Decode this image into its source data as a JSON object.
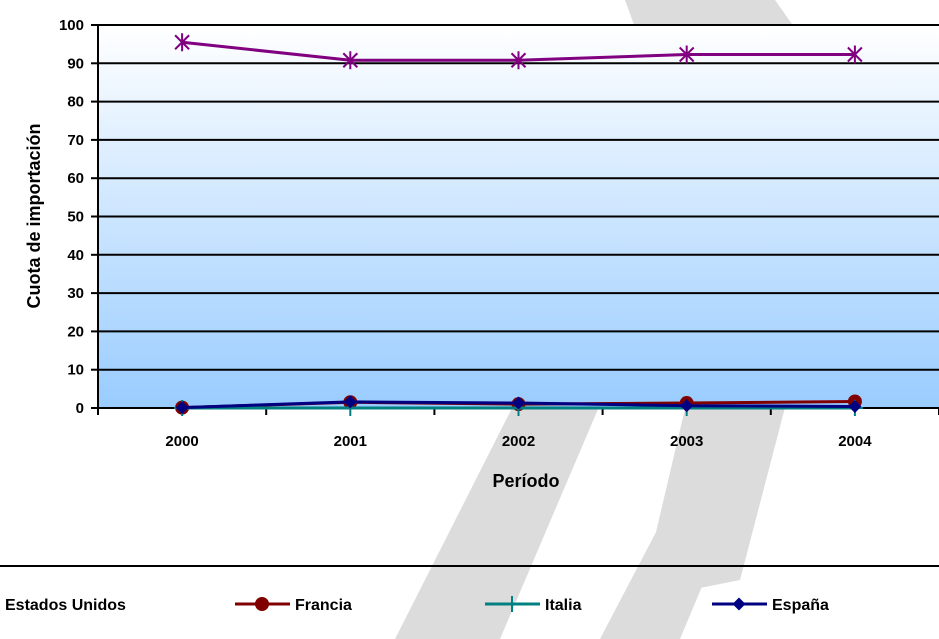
{
  "chart_data": {
    "type": "line",
    "title": "",
    "xlabel": "Período",
    "ylabel": "Cuota de importación",
    "categories": [
      "2000",
      "2001",
      "2002",
      "2003",
      "2004"
    ],
    "ylim": [
      0,
      100
    ],
    "yticks": [
      0,
      10,
      20,
      30,
      40,
      50,
      60,
      70,
      80,
      90,
      100
    ],
    "grid": true,
    "legend_position": "bottom",
    "series": [
      {
        "name": "Estados Unidos",
        "values": [
          95.5,
          90.8,
          90.8,
          92.3,
          92.3
        ],
        "color": "#800080",
        "marker": "asterisk"
      },
      {
        "name": "Francia",
        "values": [
          0.1,
          1.5,
          1.0,
          1.3,
          1.7
        ],
        "color": "#800000",
        "marker": "circle"
      },
      {
        "name": "Italia",
        "values": [
          0.0,
          0.0,
          0.0,
          0.0,
          0.0
        ],
        "color": "#008080",
        "marker": "plus"
      },
      {
        "name": "España",
        "values": [
          0.1,
          1.6,
          1.3,
          0.6,
          0.4
        ],
        "color": "#000080",
        "marker": "diamond"
      }
    ],
    "plot_background": {
      "top": "#ffffff",
      "bottom": "#99ccff"
    },
    "watermark_color": "#dcdcdc"
  }
}
